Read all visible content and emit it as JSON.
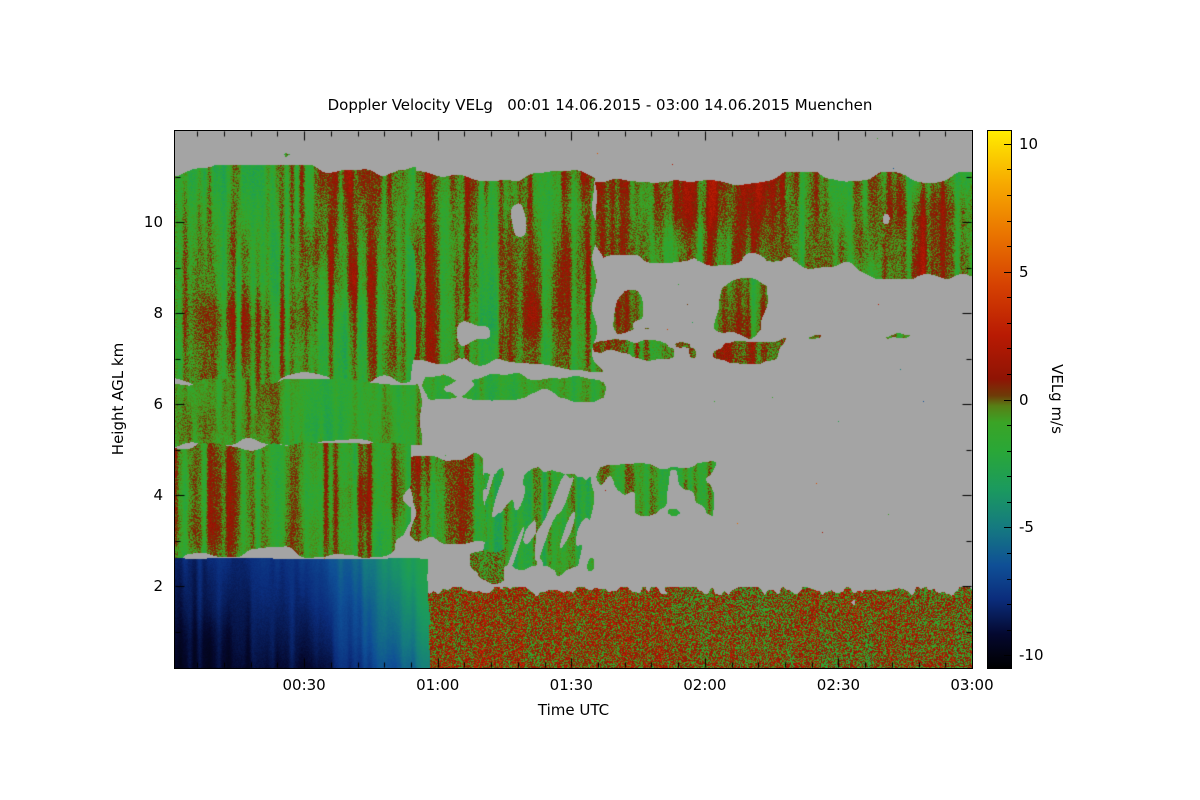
{
  "title": "Doppler Velocity VELg   00:01 14.06.2015 - 03:00 14.06.2015 Muenchen",
  "product": "Doppler Velocity VELg",
  "time_range": "00:01 14.06.2015 - 03:00 14.06.2015",
  "station": "Muenchen",
  "colors": {
    "background": "#ffffff",
    "no_data": "#a4a4a4",
    "frame": "#000000",
    "text": "#000000"
  },
  "chart_data": {
    "type": "heatmap",
    "title": "Doppler Velocity VELg   00:01 14.06.2015 - 03:00 14.06.2015 Muenchen",
    "xlabel": "Time UTC",
    "ylabel": "Height AGL km",
    "x_range_hours": [
      0.0167,
      3.0
    ],
    "y_range_km": [
      0.2,
      12.0
    ],
    "grid": false,
    "x_ticks": [
      {
        "t": 0.5,
        "label": "00:30"
      },
      {
        "t": 1.0,
        "label": "01:00"
      },
      {
        "t": 1.5,
        "label": "01:30"
      },
      {
        "t": 2.0,
        "label": "02:00"
      },
      {
        "t": 2.5,
        "label": "02:30"
      },
      {
        "t": 3.0,
        "label": "03:00"
      }
    ],
    "y_ticks": [
      {
        "h": 2,
        "label": "2"
      },
      {
        "h": 4,
        "label": "4"
      },
      {
        "h": 6,
        "label": "6"
      },
      {
        "h": 8,
        "label": "8"
      },
      {
        "h": 10,
        "label": "10"
      }
    ],
    "colorbar": {
      "label": "VELg m/s",
      "range": [
        -10.5,
        10.5
      ],
      "ticks": [
        {
          "v": -10,
          "label": "-10"
        },
        {
          "v": -5,
          "label": "-5"
        },
        {
          "v": 0,
          "label": "0"
        },
        {
          "v": 5,
          "label": "5"
        },
        {
          "v": 10,
          "label": "10"
        }
      ]
    },
    "colormap": [
      {
        "v": -10.5,
        "color": "#000000"
      },
      {
        "v": -9.2,
        "color": "#04082e"
      },
      {
        "v": -7.8,
        "color": "#0b2d7c"
      },
      {
        "v": -6.5,
        "color": "#0f4f96"
      },
      {
        "v": -5.0,
        "color": "#157a80"
      },
      {
        "v": -3.5,
        "color": "#1b9a5e"
      },
      {
        "v": -2.0,
        "color": "#2aa737"
      },
      {
        "v": -0.9,
        "color": "#3aa426"
      },
      {
        "v": -0.25,
        "color": "#577f15"
      },
      {
        "v": 0.15,
        "color": "#6e3c08"
      },
      {
        "v": 0.8,
        "color": "#8f1404"
      },
      {
        "v": 2.5,
        "color": "#b81a03"
      },
      {
        "v": 4.5,
        "color": "#d64202"
      },
      {
        "v": 6.5,
        "color": "#ea7500"
      },
      {
        "v": 8.5,
        "color": "#f7ab00"
      },
      {
        "v": 10.5,
        "color": "#ffec00"
      }
    ],
    "no_data_color": "#a4a4a4",
    "summary": "Time-height Doppler velocity curtain plot. Gray = no data. Solid dark-blue downdraft layer (-9 to -6 m/s) below ~2.6 km from 00:01 until ~00:45, turning teal then green (~-4 to -2 m/s) by 01:00; after 01:00 a noisy green/red speckle layer (-2 to +4 m/s) persists below ~2 km until 03:00. Green cloud decks with red (positive velocity) streaks fill 2.6-11 km before ~00:55, an upper deck spans 7-11 km from 01:00 to 03:00 with gaps, thin ragged bands near 7 km and scattered mid-level patches at 3-5 km between 01:10 and 02:00. Mid-level region 5-7 km is mostly data-free (gray) after ~01:00.",
    "regions": [
      {
        "name": "boundary-layer-wedge",
        "desc": "solid dark blue layer below 2.6 km turning teal/green 00:40-01:00",
        "t0": 0,
        "t1": 0.97,
        "h0": 0.2,
        "h1": 2.62,
        "cov": 1,
        "ft": 0.015,
        "fh": 0.06,
        "ct": 5,
        "ch": 1,
        "seed": 3,
        "ramp": [
          [
            0,
            -8.2
          ],
          [
            0.45,
            -7.4
          ],
          [
            0.6,
            -6.2
          ],
          [
            0.72,
            -5.0
          ],
          [
            0.82,
            -4.0
          ],
          [
            0.9,
            -3.1
          ],
          [
            0.97,
            -2.3
          ]
        ],
        "rampSlant": 0.035,
        "hgrad": 0.55,
        "streak": 0.55,
        "noise": 0.3,
        "speckle": 0.15
      },
      {
        "name": "surface-speckle-layer",
        "desc": "noisy green/red layer below ~2 km, 01:00-03:00",
        "t0": 0.93,
        "t1": 3.0,
        "h0": 0.2,
        "h1": 1.97,
        "cov": 0.97,
        "ct": 26,
        "ch": 2.4,
        "ft": 0.03,
        "fh": 0.22,
        "seed": 7,
        "ramp": [
          [
            0.93,
            0.8
          ],
          [
            1.6,
            0.55
          ],
          [
            2.2,
            0.25
          ],
          [
            3.0,
            0.0
          ]
        ],
        "streak": 0.7,
        "noise": 0.7,
        "speckle": 2.4
      },
      {
        "name": "low-transition-patch",
        "desc": "speckle just above surface layer near 01:00",
        "t0": 0.92,
        "t1": 1.28,
        "h0": 1.95,
        "h1": 2.95,
        "cov": 0.55,
        "ct": 10,
        "ch": 1.4,
        "ft": 0.05,
        "fh": 0.25,
        "seed": 47,
        "v0": -0.4,
        "streak": 1.0,
        "noise": 1.0,
        "speckle": 1.4
      },
      {
        "name": "left-lower-cloud",
        "desc": "green/red cloud 2.6-5.1 km before 00:55",
        "t0": 0,
        "t1": 0.9,
        "h0": 2.58,
        "h1": 5.15,
        "cov": 0.93,
        "ct": 7,
        "ch": 1.1,
        "ft": 0.08,
        "fh": 0.3,
        "seed": 11,
        "v0": -0.9,
        "streak": 1.6,
        "noise": 1.1,
        "speckle": 0.7
      },
      {
        "name": "left-mid-cloud",
        "desc": "green cloud 5-6.5 km before ~00:57",
        "t0": 0,
        "t1": 0.95,
        "h0": 5.05,
        "h1": 6.55,
        "cov": 0.88,
        "ct": 6,
        "ch": 1.0,
        "ft": 0.06,
        "fh": 0.3,
        "seed": 12,
        "v0": -1.1,
        "streak": 1.3,
        "noise": 1.0,
        "speckle": 0.6
      },
      {
        "name": "mid-tongue",
        "desc": "green tongue 6-6.7 km reaching ~01:40",
        "t0": 0.9,
        "t1": 1.7,
        "h0": 5.95,
        "h1": 6.72,
        "cov": 0.6,
        "ct": 8,
        "ch": 1.5,
        "ft": 0.08,
        "fh": 0.2,
        "seed": 53,
        "v0": -1.3,
        "streak": 1.1,
        "noise": 0.9,
        "speckle": 0.7
      },
      {
        "name": "left-upper-cloud",
        "desc": "deck 6.4-11.2 km before ~00:55, green with red streaks",
        "t0": 0,
        "t1": 0.92,
        "h0": 6.35,
        "h1": 11.25,
        "cov": 0.94,
        "ct": 6,
        "ch": 0.8,
        "ft": 0.05,
        "fh": 0.35,
        "seed": 13,
        "v0": -0.55,
        "streak": 1.8,
        "noise": 1.2,
        "speckle": 0.8
      },
      {
        "name": "center-upper-deck",
        "desc": "ragged deck 6.7-11.1 km, 00:50-01:40",
        "t0": 0.85,
        "t1": 1.62,
        "h0": 6.7,
        "h1": 11.15,
        "cov": 0.8,
        "ct": 6,
        "ch": 0.8,
        "ft": 0.07,
        "fh": 0.4,
        "seed": 17,
        "v0": -0.4,
        "streak": 1.7,
        "noise": 1.2,
        "speckle": 0.8
      },
      {
        "name": "right-upper-deck",
        "desc": "deck 8.8-11.1 km, 01:35-03:00, more red",
        "t0": 1.55,
        "t1": 3.0,
        "h0": 8.75,
        "h1": 11.1,
        "cov": 0.8,
        "ct": 6,
        "ch": 0.9,
        "ft": 0.07,
        "fh": 0.4,
        "seed": 19,
        "v0": 0.1,
        "streak": 1.9,
        "noise": 1.3,
        "speckle": 0.8
      },
      {
        "name": "right-mid-deck",
        "desc": "broken layer 7.3-8.9 km, 01:40-02:20",
        "t0": 1.62,
        "t1": 2.3,
        "h0": 7.3,
        "h1": 8.9,
        "cov": 0.55,
        "ct": 7,
        "ch": 0.9,
        "ft": 0.08,
        "fh": 0.35,
        "seed": 23,
        "v0": -0.5,
        "streak": 1.4,
        "noise": 1.2,
        "speckle": 0.7
      },
      {
        "name": "thin-7km-band",
        "desc": "thin speckled band near 7 km, 01:00-02:20",
        "t0": 0.95,
        "t1": 2.32,
        "h0": 6.85,
        "h1": 7.5,
        "cov": 0.62,
        "ct": 10,
        "ch": 1.6,
        "ft": 0.06,
        "fh": 0.18,
        "seed": 31,
        "v0": -0.2,
        "streak": 1.2,
        "noise": 1.0,
        "speckle": 1.0
      },
      {
        "name": "thin-7km-tail",
        "desc": "sparse 7.3-7.6 km line after 02:20",
        "t0": 2.3,
        "t1": 3.0,
        "h0": 7.3,
        "h1": 7.66,
        "cov": 0.38,
        "ct": 12,
        "ch": 2,
        "ft": 0.06,
        "fh": 0.15,
        "seed": 29,
        "v0": -0.5,
        "streak": 1.0,
        "noise": 0.8,
        "speckle": 0.8
      },
      {
        "name": "midlevel-plume",
        "desc": "dense green/red patch 3-5 km near 01:00",
        "t0": 0.85,
        "t1": 1.2,
        "h0": 2.9,
        "h1": 4.95,
        "cov": 0.78,
        "ct": 8,
        "ch": 1.1,
        "ft": 0.06,
        "fh": 0.3,
        "seed": 37,
        "v0": -0.7,
        "streak": 1.6,
        "noise": 1.1,
        "speckle": 0.9
      },
      {
        "name": "virga-streaks",
        "desc": "slanted fall streaks 2.2-4.7 km, 01:10-01:35",
        "t0": 1.13,
        "t1": 1.62,
        "h0": 2.15,
        "h1": 4.75,
        "cov": 0.5,
        "ct": 16,
        "ch": 0.55,
        "ft": 0.05,
        "fh": 0.3,
        "seed": 41,
        "v0": -1.2,
        "streak": 1.6,
        "noise": 1.0,
        "speckle": 0.8,
        "slant": 0.06
      },
      {
        "name": "midlevel-patches",
        "desc": "scattered patches 3.3-4.9 km, 01:35-02:05",
        "t0": 1.55,
        "t1": 2.08,
        "h0": 3.3,
        "h1": 4.9,
        "cov": 0.45,
        "ct": 9,
        "ch": 1.1,
        "ft": 0.06,
        "fh": 0.3,
        "seed": 43,
        "v0": -0.8,
        "streak": 1.3,
        "noise": 1.0,
        "speckle": 0.8
      },
      {
        "name": "top-sliver",
        "desc": "isolated specks above 11.2 km",
        "t0": 0.05,
        "t1": 1.45,
        "h0": 11.25,
        "h1": 11.6,
        "cov": 0.12,
        "ct": 14,
        "ch": 2,
        "ft": 0.04,
        "fh": 0.1,
        "seed": 59,
        "v0": -0.5,
        "streak": 0,
        "noise": 0.8,
        "speckle": 1.5
      }
    ]
  }
}
